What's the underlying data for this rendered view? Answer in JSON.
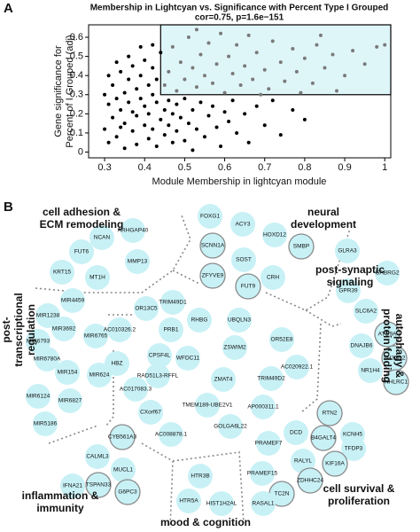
{
  "chart_data": {
    "type": "scatter",
    "panel_label": "A",
    "title": "Membership in Lightcyan vs. Significance with Percent Type I Grouped",
    "subtitle": "cor=0.75, p=1.6e−151",
    "x_label": "Module Membership in lightcyan module",
    "y_label": [
      "Gene significance for",
      "Percent of I Grouped (adj)"
    ],
    "xlim": [
      0.26,
      1.015
    ],
    "ylim": [
      -0.03,
      0.665
    ],
    "xticks": [
      0.3,
      0.4,
      0.5,
      0.6,
      0.7,
      0.8,
      0.9,
      1.0
    ],
    "yticks": [
      0.0,
      0.1,
      0.2,
      0.3,
      0.4,
      0.5,
      0.6
    ],
    "threshold_x": 0.44,
    "threshold_y": 0.3,
    "region_color": "#dff6f9",
    "series": [
      {
        "color": "#000000",
        "x": [
          0.3,
          0.31,
          0.31,
          0.32,
          0.32,
          0.33,
          0.33,
          0.34,
          0.34,
          0.35,
          0.35,
          0.35,
          0.36,
          0.36,
          0.37,
          0.37,
          0.38,
          0.38,
          0.38,
          0.39,
          0.39,
          0.4,
          0.4,
          0.4,
          0.41,
          0.41,
          0.41,
          0.42,
          0.42,
          0.42,
          0.43,
          0.43,
          0.43,
          0.44,
          0.44,
          0.45,
          0.45,
          0.46,
          0.46,
          0.47,
          0.47,
          0.48,
          0.48,
          0.49,
          0.5,
          0.5,
          0.51,
          0.52,
          0.52,
          0.53,
          0.54,
          0.55,
          0.56,
          0.57,
          0.58,
          0.59,
          0.6,
          0.61,
          0.62,
          0.63,
          0.65,
          0.66,
          0.68,
          0.7,
          0.72,
          0.74,
          0.77,
          0.8,
          0.33,
          0.36,
          0.31,
          0.39,
          0.42,
          0.3,
          0.34,
          0.37
        ],
        "values": [
          0.12,
          0.25,
          0.05,
          0.35,
          0.18,
          0.28,
          0.08,
          0.42,
          0.22,
          0.02,
          0.31,
          0.15,
          0.38,
          0.26,
          0.11,
          0.45,
          0.19,
          0.33,
          0.04,
          0.28,
          0.4,
          0.14,
          0.24,
          0.48,
          0.07,
          0.35,
          0.2,
          0.3,
          0.44,
          0.12,
          0.26,
          0.03,
          0.38,
          0.17,
          0.52,
          0.22,
          0.09,
          0.27,
          0.14,
          0.05,
          0.2,
          0.25,
          0.11,
          0.18,
          0.28,
          0.06,
          0.15,
          0.22,
          0.01,
          0.12,
          0.26,
          0.08,
          0.19,
          0.24,
          0.13,
          0.03,
          0.21,
          0.16,
          0.27,
          0.1,
          0.2,
          0.05,
          0.24,
          0.14,
          0.27,
          0.09,
          0.22,
          0.17,
          0.47,
          0.5,
          0.4,
          0.55,
          0.56,
          0.3,
          0.13,
          0.21
        ]
      },
      {
        "color": "#7a7a7a",
        "x": [
          0.45,
          0.46,
          0.47,
          0.48,
          0.49,
          0.5,
          0.51,
          0.52,
          0.53,
          0.54,
          0.55,
          0.56,
          0.57,
          0.58,
          0.59,
          0.6,
          0.61,
          0.62,
          0.63,
          0.64,
          0.65,
          0.66,
          0.67,
          0.68,
          0.7,
          0.71,
          0.72,
          0.74,
          0.75,
          0.77,
          0.78,
          0.8,
          0.82,
          0.83,
          0.85,
          0.87,
          0.88,
          0.9,
          0.92,
          0.95,
          0.98,
          1.0,
          0.69,
          0.79,
          0.53,
          0.84
        ],
        "values": [
          0.35,
          0.42,
          0.55,
          0.32,
          0.47,
          0.38,
          0.6,
          0.44,
          0.34,
          0.51,
          0.4,
          0.57,
          0.36,
          0.46,
          0.62,
          0.31,
          0.5,
          0.41,
          0.56,
          0.35,
          0.45,
          0.61,
          0.38,
          0.52,
          0.43,
          0.33,
          0.58,
          0.47,
          0.37,
          0.54,
          0.42,
          0.49,
          0.36,
          0.56,
          0.44,
          0.51,
          0.32,
          0.4,
          0.53,
          0.46,
          0.55,
          0.56,
          0.3,
          0.31,
          0.64,
          0.61
        ]
      }
    ]
  },
  "panel_b": {
    "panel_label": "B",
    "groups": [
      [
        "cell adhesion &",
        "ECM remodeling"
      ],
      [
        "neural",
        "development"
      ],
      [
        "post-synaptic",
        "signaling"
      ],
      [
        "autophagy &",
        "protein folding"
      ],
      [
        "post-",
        "transcriptional",
        "regulation"
      ],
      [
        "inflammation &",
        "immunity"
      ],
      [
        "mood & cognition"
      ],
      [
        "cell survival &",
        "proliferation"
      ]
    ],
    "nodes": [
      {
        "label": "ARHGAP40"
      },
      {
        "label": "NCAN"
      },
      {
        "label": "FUT6"
      },
      {
        "label": "MMP13"
      },
      {
        "label": "KRT15"
      },
      {
        "label": "MT1H"
      },
      {
        "label": "FOXG1"
      },
      {
        "label": "ACY3"
      },
      {
        "label": "HOXD12"
      },
      {
        "label": "SMBP",
        "outlined": true
      },
      {
        "label": "SCNN1A",
        "outlined": true
      },
      {
        "label": "SOST"
      },
      {
        "label": "CRH"
      },
      {
        "label": "ZFYVE9",
        "outlined": true
      },
      {
        "label": "FUT9",
        "outlined": true
      },
      {
        "label": "GLRA3"
      },
      {
        "label": "GPR39"
      },
      {
        "label": "GABRG2"
      },
      {
        "label": "SLC6A2"
      },
      {
        "label": "ATG9A",
        "outlined": true
      },
      {
        "label": "DNAJB6"
      },
      {
        "label": "SH3GL2",
        "outlined": true
      },
      {
        "label": "NR1H4"
      },
      {
        "label": "NHLRC1",
        "outlined": true
      },
      {
        "label": "MIR1238"
      },
      {
        "label": "MIR4459"
      },
      {
        "label": "MIR6793"
      },
      {
        "label": "MIR3692"
      },
      {
        "label": "MIR6765"
      },
      {
        "label": "MIR6780A"
      },
      {
        "label": "MIR154"
      },
      {
        "label": "MIR624"
      },
      {
        "label": "MIR6124"
      },
      {
        "label": "MIR6827"
      },
      {
        "label": "MIR5186"
      },
      {
        "label": "TRIM49D1"
      },
      {
        "label": "OR13C5"
      },
      {
        "label": "RHBG"
      },
      {
        "label": "UBQLN3"
      },
      {
        "label": "AC010326.2"
      },
      {
        "label": "PRB1"
      },
      {
        "label": "ZSWIM2"
      },
      {
        "label": "OR52E8"
      },
      {
        "label": "CPSF4L"
      },
      {
        "label": "WFDC11"
      },
      {
        "label": "AC020922.1"
      },
      {
        "label": "HBZ"
      },
      {
        "label": "RAD51L3-RFFL"
      },
      {
        "label": "ZMAT4"
      },
      {
        "label": "TRIM49D2"
      },
      {
        "label": "AC017083.3"
      },
      {
        "label": "CXorf67"
      },
      {
        "label": "TMEM189-UBE2V1"
      },
      {
        "label": "AP000311.1"
      },
      {
        "label": "GOLGA6L22"
      },
      {
        "label": "AC008878.1"
      },
      {
        "label": "CYB561A3",
        "outlined": true
      },
      {
        "label": "CALML3"
      },
      {
        "label": "MUCL1"
      },
      {
        "label": "IFNA21"
      },
      {
        "label": "TSPAN33",
        "outlined": true
      },
      {
        "label": "G6PC3",
        "outlined": true
      },
      {
        "label": "HTR3B"
      },
      {
        "label": "HTR5A"
      },
      {
        "label": "HIST1H2AL"
      },
      {
        "label": "RTN2",
        "outlined": true
      },
      {
        "label": "KCNH5"
      },
      {
        "label": "DCD"
      },
      {
        "label": "B4GALT4",
        "outlined": true
      },
      {
        "label": "TFDP3"
      },
      {
        "label": "PRAMEF7"
      },
      {
        "label": "RALYL"
      },
      {
        "label": "KIF16A",
        "outlined": true
      },
      {
        "label": "PRAMEF15"
      },
      {
        "label": "ZDHHC24",
        "outlined": true
      },
      {
        "label": "TC2N",
        "outlined": true
      },
      {
        "label": "RASAL1"
      }
    ]
  }
}
